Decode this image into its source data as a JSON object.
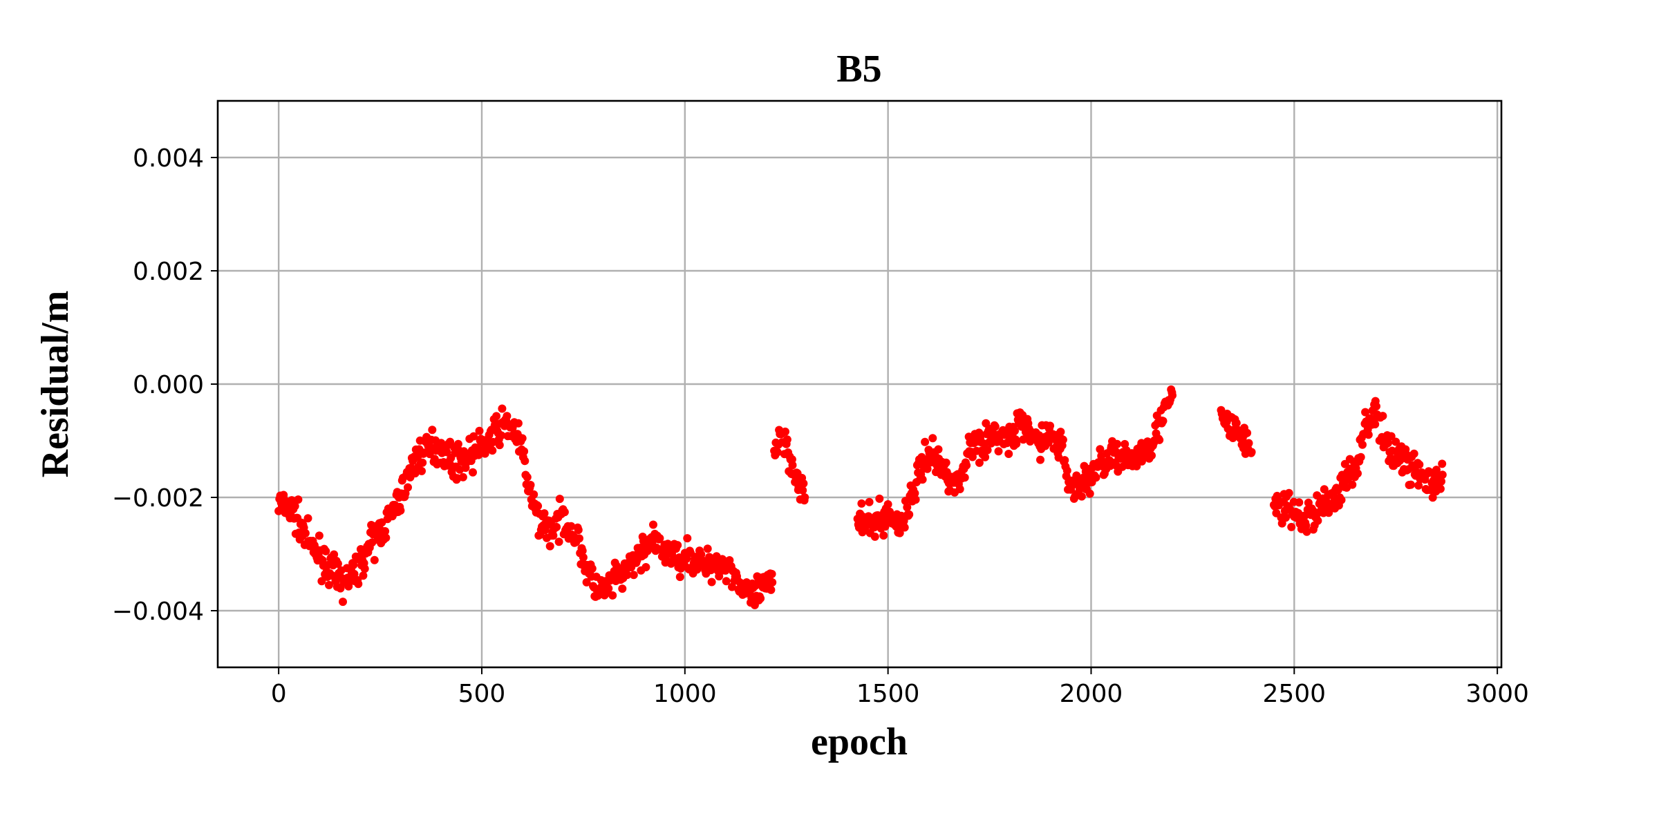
{
  "chart_data": {
    "type": "scatter",
    "title": "B5",
    "xlabel": "epoch",
    "ylabel": "Residual/m",
    "xlim": [
      -150,
      3010
    ],
    "ylim": [
      -0.005,
      0.005
    ],
    "grid": true,
    "marker_color": "#ff0000",
    "x_ticks": [
      0,
      500,
      1000,
      1500,
      2000,
      2500,
      3000
    ],
    "x_tick_labels": [
      "0",
      "500",
      "1000",
      "1500",
      "2000",
      "2500",
      "3000"
    ],
    "y_ticks": [
      0.004,
      0.002,
      0.0,
      -0.002,
      -0.004
    ],
    "y_tick_labels": [
      "0.004",
      "0.002",
      "0.000",
      "−0.002",
      "−0.004"
    ],
    "series": [
      {
        "segments": [
          {
            "x": [
              0,
              20,
              40,
              60,
              80,
              100,
              120,
              140,
              160,
              180,
              200,
              220,
              240,
              260,
              280,
              300,
              320,
              340,
              360,
              380,
              400,
              420,
              440,
              460,
              480,
              500,
              520,
              540,
              560,
              580,
              600,
              620,
              640,
              660,
              680,
              700,
              720,
              740,
              760,
              780,
              800,
              820,
              840,
              860,
              880,
              900,
              920,
              940,
              960,
              980,
              1000,
              1020,
              1040,
              1060,
              1080,
              1100,
              1120,
              1140,
              1160,
              1180,
              1200,
              1215
            ],
            "y": [
              -0.0021,
              -0.0022,
              -0.0023,
              -0.0026,
              -0.0029,
              -0.003,
              -0.0032,
              -0.0034,
              -0.0035,
              -0.0034,
              -0.0032,
              -0.0029,
              -0.0027,
              -0.0025,
              -0.0023,
              -0.002,
              -0.0016,
              -0.0013,
              -0.0012,
              -0.0011,
              -0.0011,
              -0.0013,
              -0.0014,
              -0.0013,
              -0.0012,
              -0.0011,
              -0.001,
              -0.0008,
              -0.0007,
              -0.0008,
              -0.0012,
              -0.002,
              -0.0024,
              -0.0025,
              -0.0026,
              -0.0023,
              -0.0026,
              -0.0028,
              -0.0033,
              -0.0036,
              -0.0037,
              -0.0035,
              -0.0034,
              -0.0033,
              -0.0031,
              -0.0029,
              -0.0028,
              -0.0029,
              -0.003,
              -0.0031,
              -0.003,
              -0.0031,
              -0.0032,
              -0.0032,
              -0.0031,
              -0.0032,
              -0.0033,
              -0.0036,
              -0.0038,
              -0.0037,
              -0.0036,
              -0.0035
            ]
          },
          {
            "x": [
              1220,
              1235,
              1250,
              1265,
              1280,
              1295
            ],
            "y": [
              -0.0012,
              -0.0008,
              -0.0011,
              -0.0014,
              -0.0017,
              -0.002
            ]
          },
          {
            "x": [
              1425,
              1450,
              1475,
              1500,
              1525,
              1550,
              1575,
              1600,
              1625,
              1650,
              1675,
              1700,
              1725,
              1750,
              1775,
              1800,
              1825,
              1850,
              1875,
              1900,
              1925,
              1950,
              1975,
              2000,
              2025,
              2050,
              2075,
              2100,
              2125,
              2150,
              2175,
              2200
            ],
            "y": [
              -0.0024,
              -0.0025,
              -0.0024,
              -0.0023,
              -0.0025,
              -0.0022,
              -0.0016,
              -0.0012,
              -0.0014,
              -0.0016,
              -0.0018,
              -0.0011,
              -0.001,
              -0.001,
              -0.0009,
              -0.001,
              -0.0007,
              -0.0009,
              -0.001,
              -0.0009,
              -0.0011,
              -0.0018,
              -0.0018,
              -0.0016,
              -0.0014,
              -0.0012,
              -0.0014,
              -0.0013,
              -0.0012,
              -0.001,
              -0.0006,
              -0.0002
            ]
          },
          {
            "x": [
              2320,
              2335,
              2350,
              2365,
              2380,
              2395
            ],
            "y": [
              -0.0006,
              -0.0007,
              -0.0008,
              -0.0009,
              -0.001,
              -0.0012
            ]
          },
          {
            "x": [
              2450,
              2475,
              2500,
              2525,
              2550,
              2575,
              2600,
              2625,
              2650,
              2675,
              2700,
              2725,
              2750,
              2775,
              2800,
              2825,
              2850,
              2865
            ],
            "y": [
              -0.0021,
              -0.0022,
              -0.0023,
              -0.0024,
              -0.0023,
              -0.0021,
              -0.002,
              -0.0017,
              -0.0015,
              -0.0007,
              -0.0005,
              -0.0011,
              -0.0012,
              -0.0014,
              -0.0015,
              -0.0017,
              -0.0018,
              -0.0016
            ]
          }
        ]
      }
    ]
  }
}
